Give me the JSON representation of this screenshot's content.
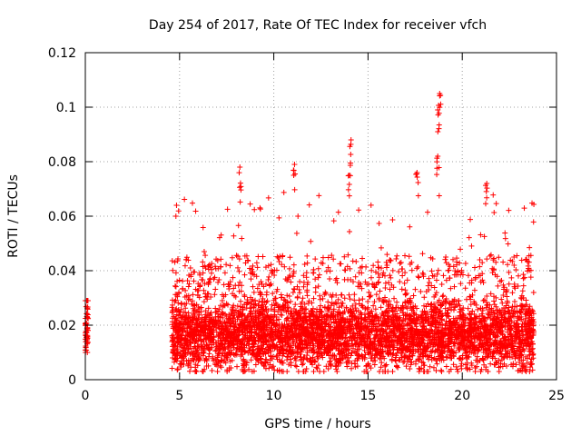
{
  "chart_data": {
    "type": "scatter",
    "title": "Day 254 of 2017, Rate Of TEC Index for receiver vfch",
    "xlabel": "GPS time / hours",
    "ylabel": "ROTI / TECUs",
    "xlim": [
      0,
      25
    ],
    "ylim": [
      0,
      0.12
    ],
    "x_ticks": [
      0,
      5,
      10,
      15,
      20,
      25
    ],
    "x_tick_labels": [
      "0",
      "5",
      "10",
      "15",
      "20",
      "25"
    ],
    "y_ticks": [
      0,
      0.02,
      0.04,
      0.06,
      0.08,
      0.1,
      0.12
    ],
    "y_tick_labels": [
      "0",
      "0.02",
      "0.04",
      "0.06",
      "0.08",
      "0.1",
      "0.12"
    ],
    "grid": true,
    "marker": "+",
    "color": "#ff0000",
    "series": [
      {
        "name": "ROTI",
        "segments": [
          {
            "x_start": 0.0,
            "x_end": 0.15,
            "y_min": 0.01,
            "y_max": 0.029,
            "y_typical": 0.017
          },
          {
            "x_start": 4.6,
            "x_end": 23.8,
            "y_min": 0.003,
            "y_max": 0.105,
            "y_typical": 0.016
          }
        ],
        "notable_points": [
          {
            "x": 8.2,
            "y": 0.078
          },
          {
            "x": 11.1,
            "y": 0.079
          },
          {
            "x": 14.1,
            "y": 0.088
          },
          {
            "x": 14.0,
            "y": 0.075
          },
          {
            "x": 18.8,
            "y": 0.105
          },
          {
            "x": 18.7,
            "y": 0.099
          },
          {
            "x": 18.7,
            "y": 0.082
          },
          {
            "x": 21.3,
            "y": 0.072
          },
          {
            "x": 17.6,
            "y": 0.076
          }
        ]
      }
    ]
  }
}
